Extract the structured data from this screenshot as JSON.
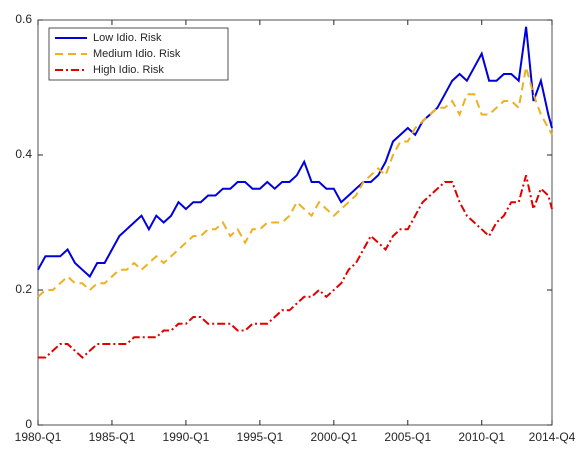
{
  "chart_data": {
    "type": "line",
    "x": [
      1980,
      1980.5,
      1981,
      1981.5,
      1982,
      1982.5,
      1983,
      1983.5,
      1984,
      1984.5,
      1985,
      1985.5,
      1986,
      1986.5,
      1987,
      1987.5,
      1988,
      1988.5,
      1989,
      1989.5,
      1990,
      1990.5,
      1991,
      1991.5,
      1992,
      1992.5,
      1993,
      1993.5,
      1994,
      1994.5,
      1995,
      1995.5,
      1996,
      1996.5,
      1997,
      1997.5,
      1998,
      1998.5,
      1999,
      1999.5,
      2000,
      2000.5,
      2001,
      2001.5,
      2002,
      2002.5,
      2003,
      2003.5,
      2004,
      2004.5,
      2005,
      2005.5,
      2006,
      2006.5,
      2007,
      2007.5,
      2008,
      2008.5,
      2009,
      2009.5,
      2010,
      2010.5,
      2011,
      2011.5,
      2012,
      2012.5,
      2013,
      2013.5,
      2014,
      2014.5,
      2014.75
    ],
    "series": [
      {
        "name": "Low Idio. Risk",
        "color": "#0000dd",
        "dash": "solid",
        "values": [
          0.23,
          0.25,
          0.25,
          0.25,
          0.26,
          0.24,
          0.23,
          0.22,
          0.24,
          0.24,
          0.26,
          0.28,
          0.29,
          0.3,
          0.31,
          0.29,
          0.31,
          0.3,
          0.31,
          0.33,
          0.32,
          0.33,
          0.33,
          0.34,
          0.34,
          0.35,
          0.35,
          0.36,
          0.36,
          0.35,
          0.35,
          0.36,
          0.35,
          0.36,
          0.36,
          0.37,
          0.39,
          0.36,
          0.36,
          0.35,
          0.35,
          0.33,
          0.34,
          0.35,
          0.36,
          0.36,
          0.37,
          0.39,
          0.42,
          0.43,
          0.44,
          0.43,
          0.45,
          0.46,
          0.47,
          0.49,
          0.51,
          0.52,
          0.51,
          0.53,
          0.55,
          0.51,
          0.51,
          0.52,
          0.52,
          0.51,
          0.59,
          0.48,
          0.51,
          0.46,
          0.44
        ]
      },
      {
        "name": "Medium Idio. Risk",
        "color": "#edb120",
        "dash": "dashed",
        "values": [
          0.19,
          0.2,
          0.2,
          0.21,
          0.22,
          0.21,
          0.21,
          0.2,
          0.21,
          0.21,
          0.22,
          0.23,
          0.23,
          0.24,
          0.23,
          0.24,
          0.25,
          0.24,
          0.25,
          0.26,
          0.27,
          0.28,
          0.28,
          0.29,
          0.29,
          0.3,
          0.28,
          0.29,
          0.27,
          0.29,
          0.29,
          0.3,
          0.3,
          0.3,
          0.31,
          0.33,
          0.32,
          0.31,
          0.33,
          0.32,
          0.31,
          0.32,
          0.33,
          0.34,
          0.36,
          0.37,
          0.38,
          0.37,
          0.4,
          0.42,
          0.42,
          0.44,
          0.45,
          0.46,
          0.47,
          0.47,
          0.48,
          0.46,
          0.49,
          0.49,
          0.46,
          0.46,
          0.47,
          0.48,
          0.48,
          0.47,
          0.53,
          0.49,
          0.46,
          0.44,
          0.43
        ]
      },
      {
        "name": "High Idio. Risk",
        "color": "#e00000",
        "dash": "dashdot",
        "values": [
          0.1,
          0.1,
          0.11,
          0.12,
          0.12,
          0.11,
          0.1,
          0.11,
          0.12,
          0.12,
          0.12,
          0.12,
          0.12,
          0.13,
          0.13,
          0.13,
          0.13,
          0.14,
          0.14,
          0.15,
          0.15,
          0.16,
          0.16,
          0.15,
          0.15,
          0.15,
          0.15,
          0.14,
          0.14,
          0.15,
          0.15,
          0.15,
          0.16,
          0.17,
          0.17,
          0.18,
          0.19,
          0.19,
          0.2,
          0.19,
          0.2,
          0.21,
          0.23,
          0.24,
          0.26,
          0.28,
          0.27,
          0.26,
          0.28,
          0.29,
          0.29,
          0.31,
          0.33,
          0.34,
          0.35,
          0.36,
          0.36,
          0.33,
          0.31,
          0.3,
          0.29,
          0.28,
          0.3,
          0.31,
          0.33,
          0.33,
          0.37,
          0.32,
          0.35,
          0.34,
          0.32
        ]
      }
    ],
    "xlim": [
      1980,
      2014.75
    ],
    "xticks": [
      {
        "value": 1980,
        "label": "1980-Q1"
      },
      {
        "value": 1985,
        "label": "1985-Q1"
      },
      {
        "value": 1990,
        "label": "1990-Q1"
      },
      {
        "value": 1995,
        "label": "1995-Q1"
      },
      {
        "value": 2000,
        "label": "2000-Q1"
      },
      {
        "value": 2005,
        "label": "2005-Q1"
      },
      {
        "value": 2010,
        "label": "2010-Q1"
      },
      {
        "value": 2014.75,
        "label": "2014-Q4"
      }
    ],
    "ylim": [
      0,
      0.6
    ],
    "yticks": [
      0,
      0.2,
      0.4,
      0.6
    ],
    "legend": "upper-left"
  }
}
